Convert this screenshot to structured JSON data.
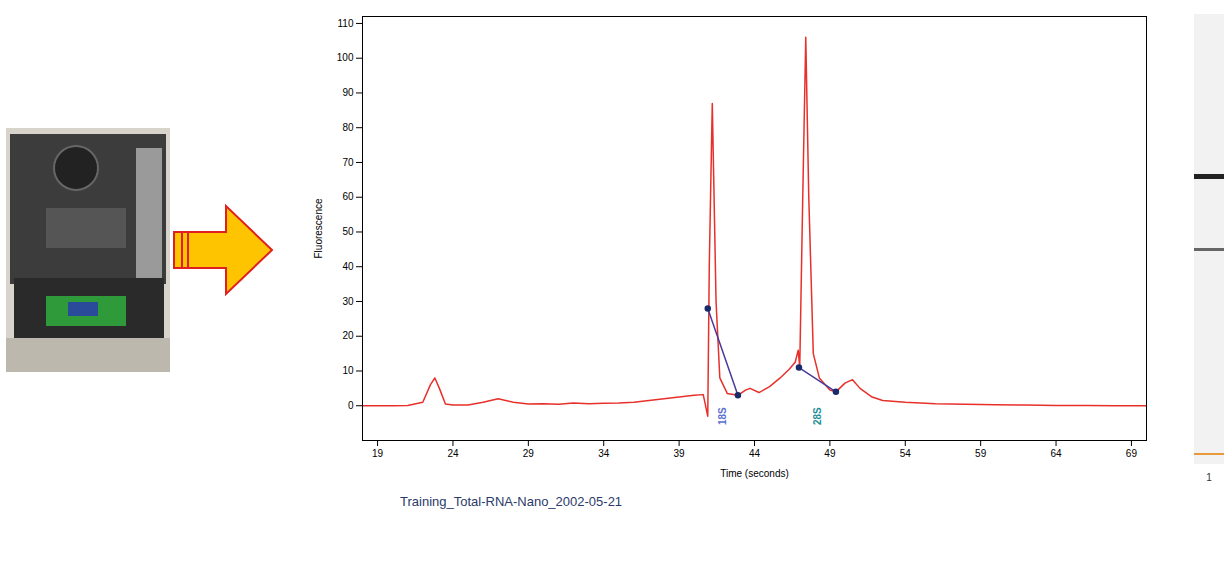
{
  "chart_data": {
    "type": "line",
    "caption": "Training_Total-RNA-Nano_2002-05-21",
    "x_label": "Time (seconds)",
    "y_label": "Fluorescence",
    "xlim": [
      18,
      70
    ],
    "xticks": [
      19,
      24,
      29,
      34,
      39,
      44,
      49,
      54,
      59,
      64,
      69
    ],
    "ylim": [
      -10,
      112
    ],
    "yticks": [
      0,
      10,
      20,
      30,
      40,
      50,
      60,
      70,
      80,
      90,
      100,
      110
    ],
    "grid": false,
    "series": [
      {
        "color": "#e8302a",
        "line_style": "solid",
        "x": [
          18,
          19,
          20,
          21,
          22,
          22.5,
          22.8,
          23.1,
          23.5,
          24,
          25,
          26,
          27,
          28,
          29,
          30,
          31,
          32,
          33,
          34,
          35,
          36,
          37,
          38,
          39,
          40,
          40.6,
          40.9,
          41.0,
          41.2,
          41.45,
          41.7,
          42.2,
          42.9,
          43.4,
          43.7,
          44.3,
          45,
          45.7,
          46.3,
          46.7,
          46.9,
          47.0,
          47.2,
          47.4,
          47.6,
          47.9,
          48.3,
          49.0,
          49.4,
          50,
          50.5,
          51,
          51.8,
          52.5,
          54,
          56,
          58,
          60,
          62,
          64,
          66,
          68,
          70
        ],
        "values": [
          0,
          0,
          0,
          0.1,
          1,
          6,
          8,
          5,
          0.5,
          0.2,
          0.2,
          1,
          2,
          1,
          0.5,
          0.6,
          0.4,
          0.8,
          0.6,
          0.7,
          0.8,
          1,
          1.5,
          2,
          2.5,
          3,
          3.2,
          -3,
          40,
          87,
          30,
          8,
          3.5,
          3,
          4.5,
          5,
          3.8,
          5.5,
          8,
          10.5,
          12.5,
          16,
          11,
          60,
          106,
          60,
          15,
          8,
          4.5,
          4,
          6.5,
          7.5,
          5,
          2.5,
          1.5,
          1,
          0.6,
          0.4,
          0.3,
          0.2,
          0.1,
          0.1,
          0,
          0
        ]
      },
      {
        "color": "#4b3a9a",
        "line_style": "solid",
        "marker": "circle",
        "x": [
          40.9,
          42.9
        ],
        "values": [
          28,
          3
        ]
      },
      {
        "color": "#4b3a9a",
        "line_style": "solid",
        "marker": "circle",
        "x": [
          46.95,
          49.4
        ],
        "values": [
          11,
          4
        ]
      }
    ],
    "annotations": [
      {
        "text": "18S",
        "x": 41.9,
        "y": -3,
        "color": "#5a6fd0"
      },
      {
        "text": "28S",
        "x": 48.2,
        "y": -3,
        "color": "#1f8f9a"
      }
    ]
  },
  "gel_lane": {
    "label": "1"
  }
}
